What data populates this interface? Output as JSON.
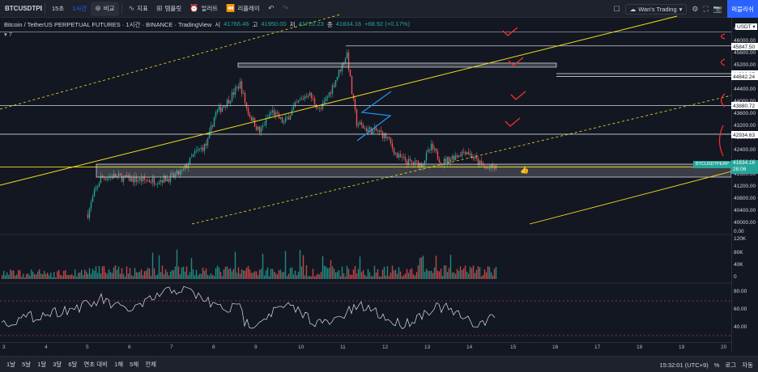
{
  "toolbar": {
    "symbol": "BTCUSDTPERP",
    "interval_minutes": "15초",
    "interval_hour": "1시간",
    "compare_label": "비교",
    "indicators_label": "지표",
    "templates_label": "템플릿",
    "alert_label": "얼러트",
    "replay_label": "리플레이",
    "layout_name": "Wan's Trading",
    "publish_label": "퍼블리쉬"
  },
  "legend": {
    "title": "Bitcoin / TetherUS PERPETUAL FUTURES · 1시간 · BINANCE · TradingView",
    "open_label": "시",
    "open": "41766.46",
    "high_label": "고",
    "high": "41950.00",
    "low_label": "저",
    "low": "41720.23",
    "close_label": "종",
    "close": "41834.16",
    "change": "+68.92 (+0.17%)",
    "indicator_count": "7"
  },
  "price_axis": {
    "currency": "USDT",
    "ticks": [
      "46400.00",
      "46000.00",
      "45600.00",
      "45200.00",
      "44800.00",
      "44400.00",
      "44000.00",
      "43600.00",
      "43200.00",
      "42800.00",
      "42400.00",
      "42000.00",
      "41600.00",
      "41200.00",
      "40800.00",
      "40400.00",
      "40000.00",
      "0.00"
    ],
    "highlight_levels": [
      "45847.50",
      "44932.05",
      "44842.24",
      "43880.72",
      "42934.63"
    ],
    "current_high": "41851.22",
    "current_price": "41834.16",
    "countdown": "28:06",
    "symbol_tag": "BTCUSDTPERP"
  },
  "volume_axis": {
    "ticks": [
      "120K",
      "80K",
      "40K",
      "0"
    ]
  },
  "rsi_axis": {
    "ticks": [
      "80.00",
      "60.00",
      "40.00"
    ]
  },
  "time_axis": {
    "ticks": [
      "3",
      "4",
      "5",
      "6",
      "7",
      "8",
      "9",
      "10",
      "11",
      "12",
      "13",
      "14",
      "15",
      "16",
      "17",
      "18",
      "19",
      "20"
    ]
  },
  "bottom_bar": {
    "ranges": [
      "1날",
      "5날",
      "1달",
      "3달",
      "6달",
      "연초 대비",
      "1해",
      "5해",
      "전체"
    ],
    "clock": "15:32:01 (UTC+9)",
    "percent": "%",
    "log": "로그",
    "auto": "자동"
  },
  "colors": {
    "background": "#131722",
    "up": "#26a69a",
    "down": "#ef5350",
    "trendline": "#f7e01d",
    "annotation": "#ff2d2d",
    "level_line": "#d1d4dc",
    "channel": "#2196f3"
  }
}
